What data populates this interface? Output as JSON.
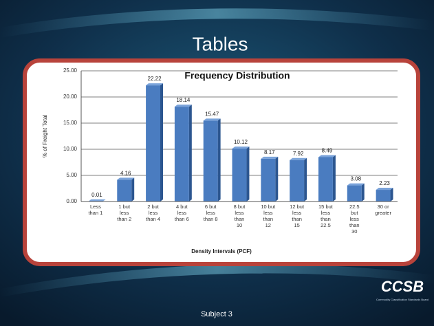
{
  "slide_title": "Tables",
  "footer": "Subject 3",
  "logo": {
    "name": "CCSB",
    "tagline": "Commodity Classification Standards Board"
  },
  "chart_data": {
    "type": "bar",
    "title": "Frequency Distribution",
    "x_label": "Density Intervals (PCF)",
    "y_label": "% of Freight Total",
    "categories": [
      "Less than 1",
      "1 but less than 2",
      "2 but less than 4",
      "4 but less than 6",
      "6 but less than 8",
      "8 but less than 10",
      "10 but less than 12",
      "12 but less than 15",
      "15 but less than 22.5",
      "22.5 but less than 30",
      "30 or greater"
    ],
    "values": [
      0.01,
      4.16,
      22.22,
      18.14,
      15.47,
      10.12,
      8.17,
      7.92,
      8.49,
      3.08,
      2.23
    ],
    "color": "#4a7cc0",
    "ylim": [
      0,
      25
    ],
    "yticks": [
      {
        "value": 0,
        "label": "0.00"
      },
      {
        "value": 5,
        "label": "5.00"
      },
      {
        "value": 10,
        "label": "10.00"
      },
      {
        "value": 15,
        "label": "15.00"
      },
      {
        "value": 20,
        "label": "20.00"
      },
      {
        "value": 25,
        "label": "25.00"
      }
    ],
    "grid": true
  }
}
